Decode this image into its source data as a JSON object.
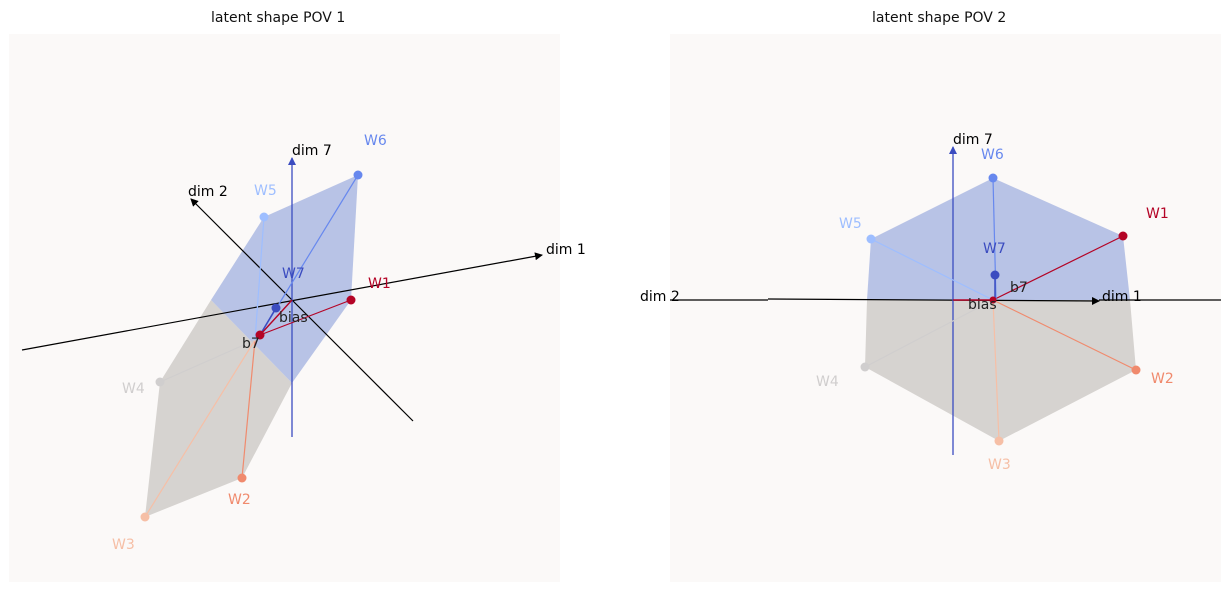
{
  "colors": {
    "background": "#fbf9f8",
    "upper_fill": "#b0bce3",
    "lower_fill": "#d6d3d0",
    "axis_black": "#000000",
    "axis_blue": "#3b4cc0",
    "w1": "#b40426",
    "w2": "#f08a6d",
    "w3": "#f6bfa6",
    "w4": "#d0cece",
    "w5": "#9ebeff",
    "w6": "#6788ee",
    "w7": "#3b4cc0",
    "b7": "#b40426",
    "bias": "#222222"
  },
  "panels": [
    {
      "title": "latent shape POV 1",
      "axis_labels": {
        "dim1": "dim 1",
        "dim2": "dim 2",
        "dim7": "dim 7"
      },
      "vectors": [
        {
          "label": "W1",
          "color_key": "w1"
        },
        {
          "label": "W2",
          "color_key": "w2"
        },
        {
          "label": "W3",
          "color_key": "w3"
        },
        {
          "label": "W4",
          "color_key": "w4"
        },
        {
          "label": "W5",
          "color_key": "w5"
        },
        {
          "label": "W6",
          "color_key": "w6"
        },
        {
          "label": "W7",
          "color_key": "w7"
        }
      ],
      "b7_label": "b7",
      "bias_label": "bias"
    },
    {
      "title": "latent shape POV 2",
      "axis_labels": {
        "dim1": "dim 1",
        "dim2": "dim 2",
        "dim7": "dim 7"
      },
      "vectors": [
        {
          "label": "W1",
          "color_key": "w1"
        },
        {
          "label": "W2",
          "color_key": "w2"
        },
        {
          "label": "W3",
          "color_key": "w3"
        },
        {
          "label": "W4",
          "color_key": "w4"
        },
        {
          "label": "W5",
          "color_key": "w5"
        },
        {
          "label": "W6",
          "color_key": "w6"
        },
        {
          "label": "W7",
          "color_key": "w7"
        }
      ],
      "b7_label": "b7",
      "bias_label": "bias"
    }
  ]
}
